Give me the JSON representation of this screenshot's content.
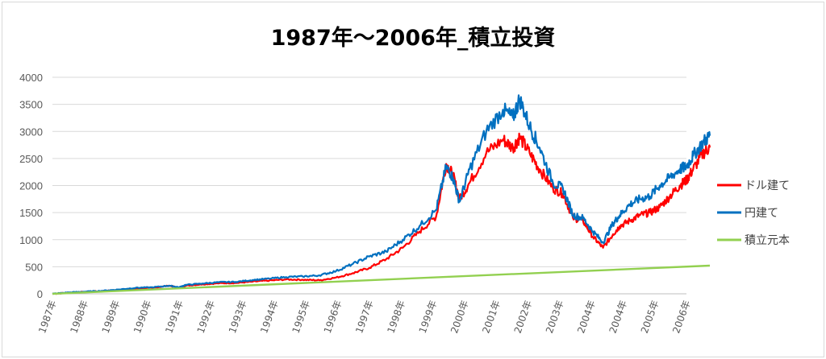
{
  "chart_data": {
    "type": "line",
    "title": "1987年～2006年_積立投資",
    "xlabel": "",
    "ylabel": "",
    "ylim": [
      0,
      4000
    ],
    "yticks": [
      0,
      500,
      1000,
      1500,
      2000,
      2500,
      3000,
      3500,
      4000
    ],
    "xtick_labels": [
      "1987年",
      "1988年",
      "1989年",
      "1990年",
      "1991年",
      "1992年",
      "1993年",
      "1994年",
      "1995年",
      "1996年",
      "1997年",
      "1998年",
      "1999年",
      "2000年",
      "2001年",
      "2002年",
      "2003年",
      "2004年",
      "2004年",
      "2005年",
      "2006年"
    ],
    "x_range": [
      1987.0,
      2006.0
    ],
    "grid": true,
    "legend_position": "right",
    "series": [
      {
        "name": "ドル建て",
        "color": "#ff0000",
        "points": [
          [
            1987.0,
            0
          ],
          [
            1987.5,
            20
          ],
          [
            1988.0,
            35
          ],
          [
            1988.5,
            50
          ],
          [
            1989.0,
            70
          ],
          [
            1989.5,
            95
          ],
          [
            1990.0,
            110
          ],
          [
            1990.5,
            150
          ],
          [
            1990.8,
            110
          ],
          [
            1991.0,
            150
          ],
          [
            1991.5,
            175
          ],
          [
            1992.0,
            195
          ],
          [
            1992.5,
            200
          ],
          [
            1993.0,
            225
          ],
          [
            1993.5,
            245
          ],
          [
            1994.0,
            265
          ],
          [
            1994.5,
            260
          ],
          [
            1995.0,
            250
          ],
          [
            1995.5,
            300
          ],
          [
            1996.0,
            380
          ],
          [
            1996.5,
            480
          ],
          [
            1997.0,
            640
          ],
          [
            1997.5,
            850
          ],
          [
            1998.0,
            1150
          ],
          [
            1998.5,
            1430
          ],
          [
            1998.8,
            2400
          ],
          [
            1999.0,
            2200
          ],
          [
            1999.2,
            1750
          ],
          [
            1999.5,
            2050
          ],
          [
            2000.0,
            2600
          ],
          [
            2000.5,
            2850
          ],
          [
            2000.8,
            2700
          ],
          [
            2001.0,
            2900
          ],
          [
            2001.3,
            2600
          ],
          [
            2001.6,
            2300
          ],
          [
            2002.0,
            1950
          ],
          [
            2002.3,
            1850
          ],
          [
            2002.6,
            1400
          ],
          [
            2002.9,
            1350
          ],
          [
            2003.2,
            1050
          ],
          [
            2003.5,
            850
          ],
          [
            2003.8,
            1100
          ],
          [
            2004.0,
            1250
          ],
          [
            2004.3,
            1350
          ],
          [
            2004.6,
            1450
          ],
          [
            2004.9,
            1500
          ],
          [
            2005.2,
            1600
          ],
          [
            2005.5,
            1800
          ],
          [
            2005.8,
            2000
          ],
          [
            2006.0,
            2100
          ],
          [
            2006.2,
            2300
          ],
          [
            2006.5,
            2600
          ],
          [
            2006.7,
            2700
          ]
        ]
      },
      {
        "name": "円建て",
        "color": "#0070c0",
        "points": [
          [
            1987.0,
            0
          ],
          [
            1987.5,
            25
          ],
          [
            1988.0,
            40
          ],
          [
            1988.5,
            55
          ],
          [
            1989.0,
            80
          ],
          [
            1989.5,
            110
          ],
          [
            1990.0,
            120
          ],
          [
            1990.5,
            150
          ],
          [
            1990.8,
            120
          ],
          [
            1991.0,
            165
          ],
          [
            1991.5,
            190
          ],
          [
            1992.0,
            215
          ],
          [
            1992.5,
            220
          ],
          [
            1993.0,
            255
          ],
          [
            1993.5,
            280
          ],
          [
            1994.0,
            310
          ],
          [
            1994.5,
            320
          ],
          [
            1995.0,
            340
          ],
          [
            1995.5,
            420
          ],
          [
            1996.0,
            550
          ],
          [
            1996.5,
            690
          ],
          [
            1997.0,
            780
          ],
          [
            1997.5,
            1000
          ],
          [
            1998.0,
            1250
          ],
          [
            1998.5,
            1550
          ],
          [
            1998.8,
            2350
          ],
          [
            1999.0,
            2150
          ],
          [
            1999.2,
            1700
          ],
          [
            1999.5,
            2300
          ],
          [
            2000.0,
            3000
          ],
          [
            2000.5,
            3400
          ],
          [
            2000.8,
            3250
          ],
          [
            2001.0,
            3600
          ],
          [
            2001.3,
            3100
          ],
          [
            2001.6,
            2700
          ],
          [
            2002.0,
            2050
          ],
          [
            2002.3,
            1950
          ],
          [
            2002.6,
            1450
          ],
          [
            2002.9,
            1400
          ],
          [
            2003.2,
            1150
          ],
          [
            2003.5,
            950
          ],
          [
            2003.8,
            1300
          ],
          [
            2004.0,
            1450
          ],
          [
            2004.3,
            1650
          ],
          [
            2004.6,
            1750
          ],
          [
            2004.9,
            1800
          ],
          [
            2005.2,
            2000
          ],
          [
            2005.5,
            2150
          ],
          [
            2005.8,
            2300
          ],
          [
            2006.0,
            2350
          ],
          [
            2006.2,
            2550
          ],
          [
            2006.5,
            2800
          ],
          [
            2006.7,
            2920
          ]
        ]
      },
      {
        "name": "積立元本",
        "color": "#92d050",
        "points": [
          [
            1987.0,
            0
          ],
          [
            2006.7,
            520
          ]
        ]
      }
    ]
  }
}
